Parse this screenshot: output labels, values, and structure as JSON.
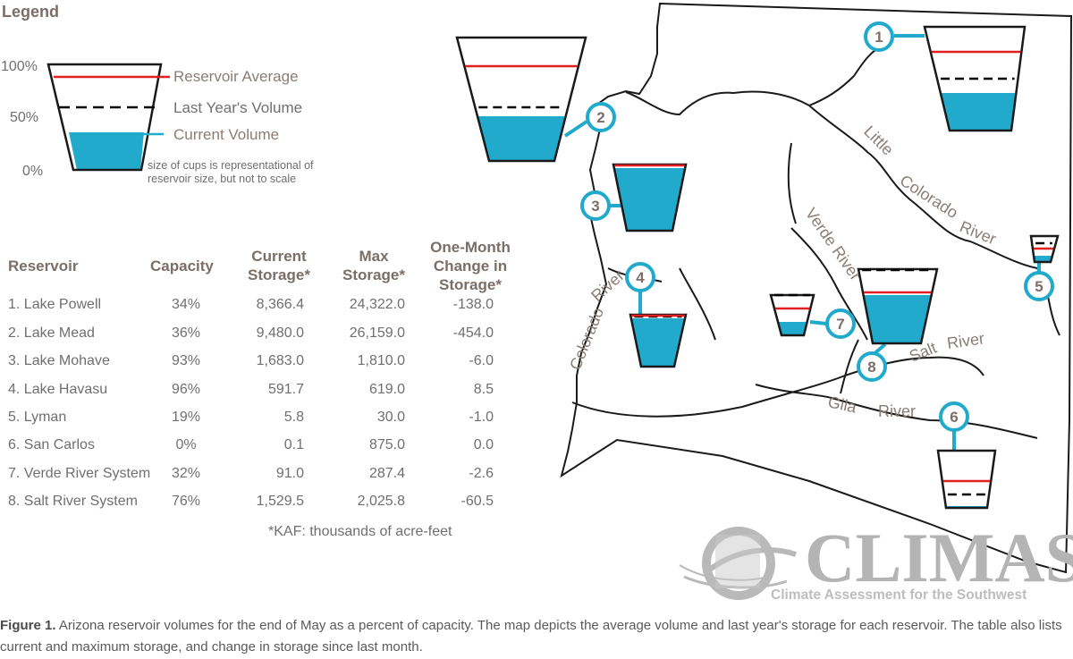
{
  "legend": {
    "title": "Legend",
    "ticks": [
      "100%",
      "50%",
      "0%"
    ],
    "reservoir_average": "Reservoir Average",
    "last_year": "Last Year's Volume",
    "current_volume": "Current Volume",
    "scale_note_1": "size of cups is representational of",
    "scale_note_2": "reservoir size, but not to scale",
    "colors": {
      "current": "#22aacc",
      "average": "#e02020",
      "last_year": "#000000"
    }
  },
  "table": {
    "headers": {
      "reservoir": "Reservoir",
      "capacity": "Capacity",
      "current_1": "Current",
      "current_2": "Storage*",
      "max_1": "Max",
      "max_2": "Storage*",
      "change_1": "One-Month",
      "change_2": "Change in",
      "change_3": "Storage*"
    },
    "rows": [
      {
        "name": "1. Lake Powell",
        "capacity": "34%",
        "current": "8,366.4",
        "max": "24,322.0",
        "change": "-138.0"
      },
      {
        "name": "2. Lake Mead",
        "capacity": "36%",
        "current": "9,480.0",
        "max": "26,159.0",
        "change": "-454.0"
      },
      {
        "name": "3. Lake Mohave",
        "capacity": "93%",
        "current": "1,683.0",
        "max": "1,810.0",
        "change": "-6.0"
      },
      {
        "name": "4. Lake Havasu",
        "capacity": "96%",
        "current": "591.7",
        "max": "619.0",
        "change": "8.5"
      },
      {
        "name": "5. Lyman",
        "capacity": "19%",
        "current": "5.8",
        "max": "30.0",
        "change": "-1.0"
      },
      {
        "name": "6. San Carlos",
        "capacity": "0%",
        "current": "0.1",
        "max": "875.0",
        "change": "0.0"
      },
      {
        "name": "7. Verde River System",
        "capacity": "32%",
        "current": "91.0",
        "max": "287.4",
        "change": "-2.6"
      },
      {
        "name": "8. Salt River System",
        "capacity": "76%",
        "current": "1,529.5",
        "max": "2,025.8",
        "change": "-60.5"
      }
    ],
    "note": "*KAF: thousands of acre-feet"
  },
  "map": {
    "rivers": {
      "little": "Little",
      "colorado_1": "Colorado",
      "river_1": "River",
      "colorado_2": "Colorado",
      "river_2": "River",
      "verde": "Verde River",
      "salt": "Salt",
      "river_salt": "River",
      "gila": "Gila",
      "river_gila": "River"
    },
    "markers": [
      "1",
      "2",
      "3",
      "4",
      "5",
      "6",
      "7",
      "8"
    ]
  },
  "logo": {
    "name": "CLIMAS",
    "tagline": "Climate Assessment for the Southwest"
  },
  "caption": {
    "label": "Figure 1.",
    "text": " Arizona reservoir volumes for the end of May as a percent of capacity. The map depicts the average volume and last year's storage for each reservoir. The table also lists current and maximum storage, and change in storage since last month."
  }
}
